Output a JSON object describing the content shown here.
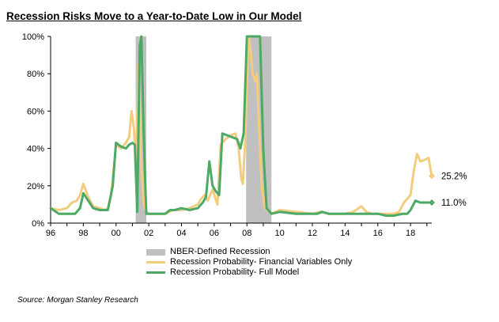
{
  "title": "Recession  Risks  Move to  a Year-to-Date Low in Our Model",
  "source": "Source: Morgan Stanley Research",
  "chart_data": {
    "type": "line",
    "xlim": [
      1996,
      2019.3
    ],
    "ylim": [
      0,
      100
    ],
    "y_ticks": [
      0,
      20,
      40,
      60,
      80,
      100
    ],
    "y_tick_labels": [
      "0%",
      "20%",
      "40%",
      "60%",
      "80%",
      "100%"
    ],
    "x_ticks": [
      1996,
      1998,
      2000,
      2002,
      2004,
      2006,
      2008,
      2010,
      2012,
      2014,
      2016,
      2018
    ],
    "x_tick_labels": [
      "96",
      "98",
      "00",
      "02",
      "04",
      "06",
      "08",
      "10",
      "12",
      "14",
      "16",
      "18"
    ],
    "grid": false,
    "legend": [
      "NBER-Defined Recession",
      "Recession Probability- Financial Variables Only",
      "Recession Probability- Full Model"
    ],
    "recessions": [
      [
        2001.2,
        2001.85
      ],
      [
        2007.95,
        2009.5
      ]
    ],
    "series": [
      {
        "name": "Recession Probability- Financial Variables Only",
        "color": "#f2cd7f",
        "points": [
          [
            1996,
            8
          ],
          [
            1996.5,
            7
          ],
          [
            1997,
            8
          ],
          [
            1997.3,
            11
          ],
          [
            1997.6,
            12
          ],
          [
            1997.8,
            15
          ],
          [
            1998,
            21
          ],
          [
            1998.3,
            14
          ],
          [
            1998.6,
            9
          ],
          [
            1999,
            8
          ],
          [
            1999.3,
            7
          ],
          [
            1999.5,
            8
          ],
          [
            1999.7,
            15
          ],
          [
            2000,
            42
          ],
          [
            2000.3,
            40
          ],
          [
            2000.6,
            43
          ],
          [
            2000.8,
            46
          ],
          [
            2000.95,
            60
          ],
          [
            2001.1,
            50
          ],
          [
            2001.2,
            30
          ],
          [
            2001.4,
            85
          ],
          [
            2001.55,
            30
          ],
          [
            2001.7,
            10
          ],
          [
            2001.85,
            6
          ],
          [
            2002,
            5
          ],
          [
            2003,
            5
          ],
          [
            2003.5,
            7
          ],
          [
            2004,
            7
          ],
          [
            2004.5,
            8
          ],
          [
            2005,
            10
          ],
          [
            2005.2,
            13
          ],
          [
            2005.4,
            15
          ],
          [
            2005.6,
            12
          ],
          [
            2005.9,
            18
          ],
          [
            2006.2,
            10
          ],
          [
            2006.4,
            42
          ],
          [
            2006.7,
            45
          ],
          [
            2007,
            47
          ],
          [
            2007.3,
            48
          ],
          [
            2007.5,
            40
          ],
          [
            2007.65,
            24
          ],
          [
            2007.75,
            21
          ],
          [
            2007.9,
            45
          ],
          [
            2008,
            75
          ],
          [
            2008.1,
            100
          ],
          [
            2008.2,
            95
          ],
          [
            2008.35,
            80
          ],
          [
            2008.5,
            76
          ],
          [
            2008.6,
            80
          ],
          [
            2008.75,
            50
          ],
          [
            2008.9,
            20
          ],
          [
            2009.1,
            8
          ],
          [
            2009.5,
            5
          ],
          [
            2010,
            7
          ],
          [
            2011,
            6
          ],
          [
            2012,
            5
          ],
          [
            2012.5,
            6
          ],
          [
            2013,
            5
          ],
          [
            2014,
            5
          ],
          [
            2014.5,
            6
          ],
          [
            2015,
            9
          ],
          [
            2015.3,
            6
          ],
          [
            2015.6,
            5
          ],
          [
            2016,
            5
          ],
          [
            2017,
            5
          ],
          [
            2017.3,
            6
          ],
          [
            2017.6,
            11
          ],
          [
            2018,
            15
          ],
          [
            2018.2,
            28
          ],
          [
            2018.4,
            37
          ],
          [
            2018.6,
            33
          ],
          [
            2018.9,
            34
          ],
          [
            2019.1,
            35
          ],
          [
            2019.3,
            25.2
          ]
        ]
      },
      {
        "name": "Recession Probability- Full Model",
        "color": "#4caa66",
        "points": [
          [
            1996,
            8
          ],
          [
            1996.5,
            5
          ],
          [
            1997,
            5
          ],
          [
            1997.5,
            5
          ],
          [
            1997.8,
            8
          ],
          [
            1998,
            16
          ],
          [
            1998.3,
            12
          ],
          [
            1998.6,
            8
          ],
          [
            1999,
            7
          ],
          [
            1999.5,
            7
          ],
          [
            1999.8,
            20
          ],
          [
            2000,
            43
          ],
          [
            2000.3,
            41
          ],
          [
            2000.6,
            40
          ],
          [
            2000.8,
            42
          ],
          [
            2001,
            43
          ],
          [
            2001.15,
            42
          ],
          [
            2001.3,
            6
          ],
          [
            2001.45,
            95
          ],
          [
            2001.55,
            100
          ],
          [
            2001.7,
            45
          ],
          [
            2001.85,
            5
          ],
          [
            2002,
            5
          ],
          [
            2003,
            5
          ],
          [
            2003.3,
            7
          ],
          [
            2003.6,
            7
          ],
          [
            2004,
            8
          ],
          [
            2004.5,
            7
          ],
          [
            2005,
            8
          ],
          [
            2005.3,
            11
          ],
          [
            2005.5,
            14
          ],
          [
            2005.7,
            33
          ],
          [
            2005.9,
            20
          ],
          [
            2006.1,
            17
          ],
          [
            2006.3,
            15
          ],
          [
            2006.5,
            48
          ],
          [
            2006.8,
            47
          ],
          [
            2007.1,
            46
          ],
          [
            2007.4,
            45
          ],
          [
            2007.6,
            40
          ],
          [
            2007.8,
            48
          ],
          [
            2008,
            100
          ],
          [
            2008.5,
            100
          ],
          [
            2008.8,
            100
          ],
          [
            2009,
            40
          ],
          [
            2009.2,
            8
          ],
          [
            2009.5,
            5
          ],
          [
            2010,
            6
          ],
          [
            2011,
            5
          ],
          [
            2012,
            5
          ],
          [
            2012.3,
            5
          ],
          [
            2012.6,
            6
          ],
          [
            2013,
            5
          ],
          [
            2014,
            5
          ],
          [
            2015,
            5
          ],
          [
            2015.5,
            5
          ],
          [
            2016,
            5
          ],
          [
            2016.5,
            4
          ],
          [
            2017,
            4
          ],
          [
            2017.5,
            5
          ],
          [
            2017.8,
            5
          ],
          [
            2018,
            7
          ],
          [
            2018.3,
            12
          ],
          [
            2018.6,
            11
          ],
          [
            2018.9,
            11
          ],
          [
            2019.1,
            11
          ],
          [
            2019.3,
            11
          ]
        ]
      }
    ],
    "end_labels": [
      "25.2%",
      "11.0%"
    ]
  }
}
